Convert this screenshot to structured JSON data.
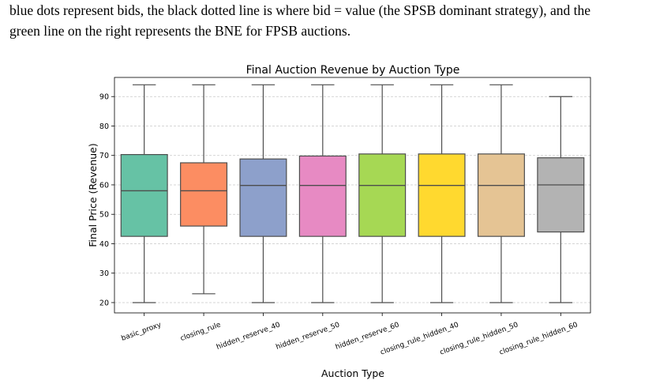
{
  "caption": {
    "line1": "blue dots represent bids, the black dotted line is where bid = value (the SPSB dominant strategy), and the",
    "line2": "green line on the right represents the BNE for FPSB auctions."
  },
  "chart_data": {
    "type": "box",
    "title": "Final Auction Revenue by Auction Type",
    "xlabel": "Auction Type",
    "ylabel": "Final Price (Revenue)",
    "ylim": [
      16.5,
      96.5
    ],
    "yticks": [
      20,
      30,
      40,
      50,
      60,
      70,
      80,
      90
    ],
    "grid": "y-dashed",
    "categories": [
      "basic_proxy",
      "closing_rule",
      "hidden_reserve_40",
      "hidden_reserve_50",
      "hidden_reserve_60",
      "closing_rule_hidden_40",
      "closing_rule_hidden_50",
      "closing_rule_hidden_60"
    ],
    "colors": [
      "#66c2a5",
      "#fc8d62",
      "#8da0cb",
      "#e78ac3",
      "#a6d854",
      "#ffd92f",
      "#e5c494",
      "#b3b3b3"
    ],
    "boxes": [
      {
        "whisker_low": 20,
        "q1": 42.5,
        "median": 58,
        "q3": 70.3,
        "whisker_high": 94
      },
      {
        "whisker_low": 23,
        "q1": 46,
        "median": 58,
        "q3": 67.5,
        "whisker_high": 94
      },
      {
        "whisker_low": 20,
        "q1": 42.5,
        "median": 59.8,
        "q3": 68.8,
        "whisker_high": 94
      },
      {
        "whisker_low": 20,
        "q1": 42.5,
        "median": 59.8,
        "q3": 69.8,
        "whisker_high": 94
      },
      {
        "whisker_low": 20,
        "q1": 42.5,
        "median": 59.8,
        "q3": 70.5,
        "whisker_high": 94
      },
      {
        "whisker_low": 20,
        "q1": 42.5,
        "median": 59.8,
        "q3": 70.5,
        "whisker_high": 94
      },
      {
        "whisker_low": 20,
        "q1": 42.5,
        "median": 59.8,
        "q3": 70.5,
        "whisker_high": 94
      },
      {
        "whisker_low": 20,
        "q1": 44,
        "median": 60,
        "q3": 69.2,
        "whisker_high": 90
      }
    ]
  }
}
